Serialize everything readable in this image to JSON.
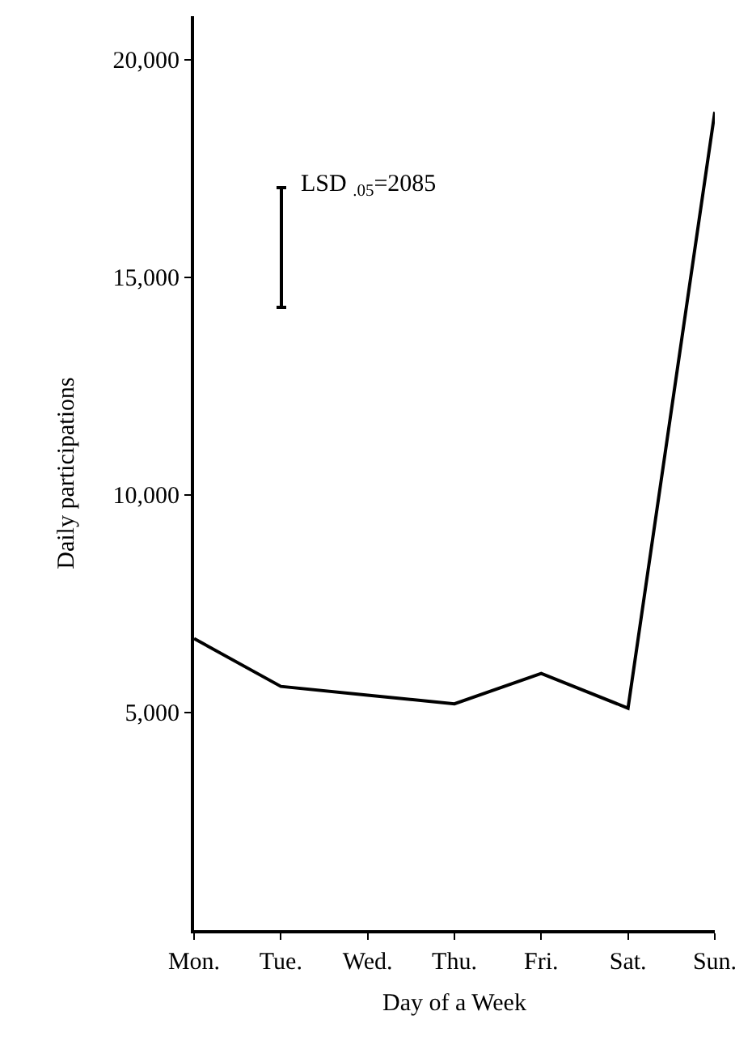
{
  "chart_data": {
    "type": "line",
    "xlabel": "Day of a Week",
    "ylabel": "Daily participations",
    "categories": [
      "Mon.",
      "Tue.",
      "Wed.",
      "Thu.",
      "Fri.",
      "Sat.",
      "Sun."
    ],
    "series": [
      {
        "color": "#000000",
        "values": [
          6700,
          5600,
          5400,
          5200,
          5900,
          5100,
          18800
        ]
      }
    ],
    "ylim": [
      0,
      21000
    ],
    "yticks": [
      {
        "value": 5000,
        "label": "5,000"
      },
      {
        "value": 10000,
        "label": "10,000"
      },
      {
        "value": 15000,
        "label": "15,000"
      },
      {
        "value": 20000,
        "label": "20,000"
      }
    ],
    "annotations": [
      "LSD $_{.05}$=2085"
    ],
    "grid": false,
    "marker": "none",
    "line_style": "solid"
  }
}
